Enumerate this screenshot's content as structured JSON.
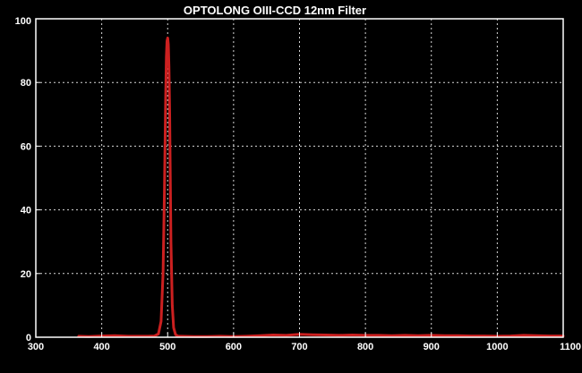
{
  "chart_data": {
    "type": "line",
    "title": "OPTOLONG OIII-CCD 12nm Filter",
    "xlabel": "",
    "ylabel": "",
    "xlim": [
      300,
      1100
    ],
    "ylim": [
      0,
      100
    ],
    "xticks": [
      300,
      400,
      500,
      600,
      700,
      800,
      900,
      1000,
      1100
    ],
    "yticks": [
      0,
      20,
      40,
      60,
      80,
      100
    ],
    "grid": true,
    "series": [
      {
        "color": "#cc2020",
        "x": [
          365,
          380,
          400,
          420,
          440,
          460,
          470,
          480,
          486,
          490,
          493,
          495,
          497,
          498,
          499,
          500,
          501,
          502,
          503,
          504,
          505,
          507,
          509,
          512,
          516,
          520,
          540,
          560,
          580,
          600,
          620,
          640,
          660,
          680,
          700,
          720,
          740,
          760,
          780,
          800,
          820,
          840,
          860,
          880,
          900,
          920,
          940,
          960,
          980,
          1000,
          1020,
          1040,
          1060,
          1080,
          1100
        ],
        "y": [
          0.3,
          0.2,
          0.4,
          0.5,
          0.3,
          0.3,
          0.3,
          0.4,
          1,
          5,
          20,
          45,
          75,
          88,
          93,
          94,
          92,
          85,
          70,
          50,
          30,
          10,
          3,
          0.8,
          0.3,
          0.3,
          0.2,
          0.2,
          0.3,
          0.2,
          0.3,
          0.5,
          0.7,
          0.6,
          0.9,
          0.8,
          0.7,
          0.6,
          0.7,
          0.6,
          0.6,
          0.5,
          0.6,
          0.5,
          0.6,
          0.5,
          0.5,
          0.4,
          0.4,
          0.3,
          0.4,
          0.6,
          0.5,
          0.4,
          0.4
        ]
      }
    ]
  }
}
